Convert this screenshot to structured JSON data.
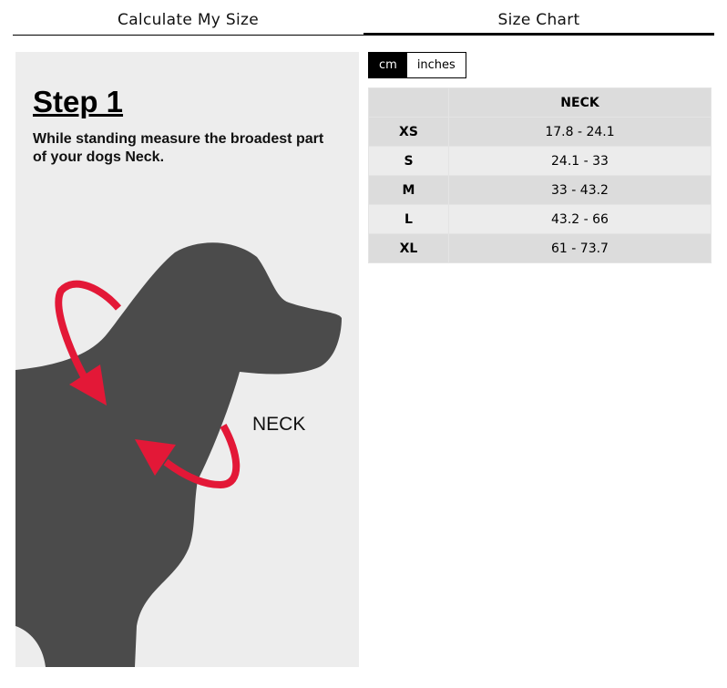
{
  "tabs": [
    {
      "label": "Calculate My Size",
      "active": false
    },
    {
      "label": "Size Chart",
      "active": true
    }
  ],
  "guide": {
    "step": "Step 1",
    "instruction": "While standing measure the broadest part of your dogs Neck.",
    "label": "NECK",
    "arrow_color": "#e31837",
    "dog_color": "#4b4b4b"
  },
  "units": {
    "options": [
      "cm",
      "inches"
    ],
    "selected": "cm"
  },
  "table": {
    "headers": [
      "",
      "NECK"
    ],
    "rows": [
      [
        "XS",
        "17.8 - 24.1"
      ],
      [
        "S",
        "24.1 - 33"
      ],
      [
        "M",
        "33 - 43.2"
      ],
      [
        "L",
        "43.2 - 66"
      ],
      [
        "XL",
        "61 - 73.7"
      ]
    ]
  }
}
